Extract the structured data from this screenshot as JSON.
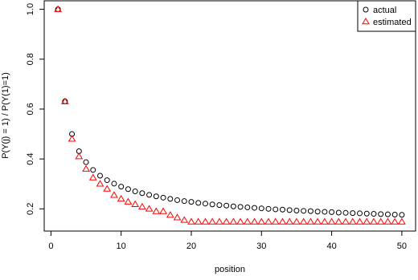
{
  "chart_data": {
    "type": "scatter",
    "x_label": "position",
    "y_label": "P(Y(j) = 1) / P(Y(1)=1)",
    "x": [
      1,
      2,
      3,
      4,
      5,
      6,
      7,
      8,
      9,
      10,
      11,
      12,
      13,
      14,
      15,
      16,
      17,
      18,
      19,
      20,
      21,
      22,
      23,
      24,
      25,
      26,
      27,
      28,
      29,
      30,
      31,
      32,
      33,
      34,
      35,
      36,
      37,
      38,
      39,
      40,
      41,
      42,
      43,
      44,
      45,
      46,
      47,
      48,
      49,
      50
    ],
    "series": [
      {
        "name": "actual",
        "color": "#000000",
        "marker": "circle",
        "values": [
          1.0,
          0.631,
          0.5,
          0.431,
          0.387,
          0.356,
          0.333,
          0.315,
          0.301,
          0.289,
          0.279,
          0.27,
          0.263,
          0.256,
          0.25,
          0.245,
          0.24,
          0.235,
          0.231,
          0.228,
          0.224,
          0.221,
          0.218,
          0.215,
          0.213,
          0.21,
          0.208,
          0.206,
          0.204,
          0.202,
          0.2,
          0.198,
          0.197,
          0.195,
          0.193,
          0.192,
          0.191,
          0.189,
          0.188,
          0.187,
          0.185,
          0.184,
          0.183,
          0.182,
          0.181,
          0.18,
          0.179,
          0.178,
          0.177,
          0.176
        ]
      },
      {
        "name": "estimated",
        "color": "#ff0000",
        "marker": "triangle",
        "values": [
          1.0,
          0.63,
          0.48,
          0.41,
          0.36,
          0.325,
          0.3,
          0.28,
          0.255,
          0.24,
          0.228,
          0.218,
          0.208,
          0.2,
          0.19,
          0.19,
          0.175,
          0.165,
          0.155,
          0.148,
          0.148,
          0.148,
          0.148,
          0.148,
          0.148,
          0.148,
          0.148,
          0.148,
          0.148,
          0.148,
          0.148,
          0.148,
          0.148,
          0.148,
          0.148,
          0.148,
          0.148,
          0.148,
          0.148,
          0.148,
          0.148,
          0.148,
          0.148,
          0.148,
          0.148,
          0.148,
          0.148,
          0.148,
          0.148,
          0.148
        ]
      }
    ],
    "xlim": [
      -0.96,
      51.96
    ],
    "ylim": [
      0.111,
      1.034
    ],
    "xticks": [
      0,
      10,
      20,
      30,
      40,
      50
    ],
    "yticks": [
      0.2,
      0.4,
      0.6,
      0.8,
      {
        "value": 1.0,
        "label": "1.0"
      }
    ],
    "legend": "topright"
  }
}
